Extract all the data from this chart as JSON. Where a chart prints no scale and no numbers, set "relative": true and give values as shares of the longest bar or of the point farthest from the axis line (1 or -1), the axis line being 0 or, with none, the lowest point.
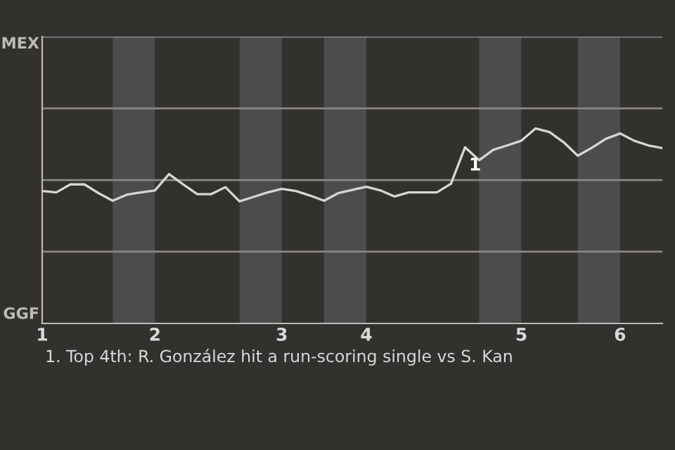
{
  "chart_data": {
    "type": "line",
    "relative": true,
    "categories": [
      "1",
      null,
      null,
      null,
      null,
      null,
      null,
      null,
      "2",
      null,
      null,
      null,
      null,
      null,
      null,
      null,
      null,
      "3",
      null,
      null,
      null,
      null,
      null,
      "4",
      null,
      null,
      null,
      null,
      null,
      null,
      null,
      null,
      null,
      null,
      "5",
      null,
      null,
      null,
      null,
      null,
      null,
      "6",
      null,
      null,
      null
    ],
    "series": [
      {
        "color": "#d8d6d3",
        "values": [
          0.679,
          0.672,
          0.713,
          0.713,
          0.668,
          0.629,
          0.66,
          0.672,
          0.682,
          0.766,
          0.713,
          0.663,
          0.663,
          0.699,
          0.626,
          0.649,
          0.672,
          0.69,
          0.679,
          0.656,
          0.629,
          0.668,
          0.685,
          0.701,
          0.682,
          0.651,
          0.672,
          0.672,
          0.672,
          0.716,
          0.903,
          0.837,
          0.89,
          0.913,
          0.937,
          1,
          0.981,
          0.929,
          0.86,
          0.901,
          0.947,
          0.974,
          0.937,
          0.913,
          0.899
        ]
      }
    ],
    "marker": "none",
    "line_style": "solid",
    "ref_lines": [
      {
        "axis": "y",
        "value": 0.368,
        "color": "#8a8885"
      },
      {
        "axis": "y",
        "value": 0.735,
        "color": "#8a8885"
      },
      {
        "axis": "y",
        "value": 1.103,
        "color": "#8a8885"
      },
      {
        "axis": "y",
        "value": 1.471,
        "color": "#8a8885"
      }
    ],
    "annotations": [
      "MEX",
      "GGF",
      "1",
      "1. Top 4th: R. González hit a run-scoring single vs S. Kan"
    ]
  }
}
